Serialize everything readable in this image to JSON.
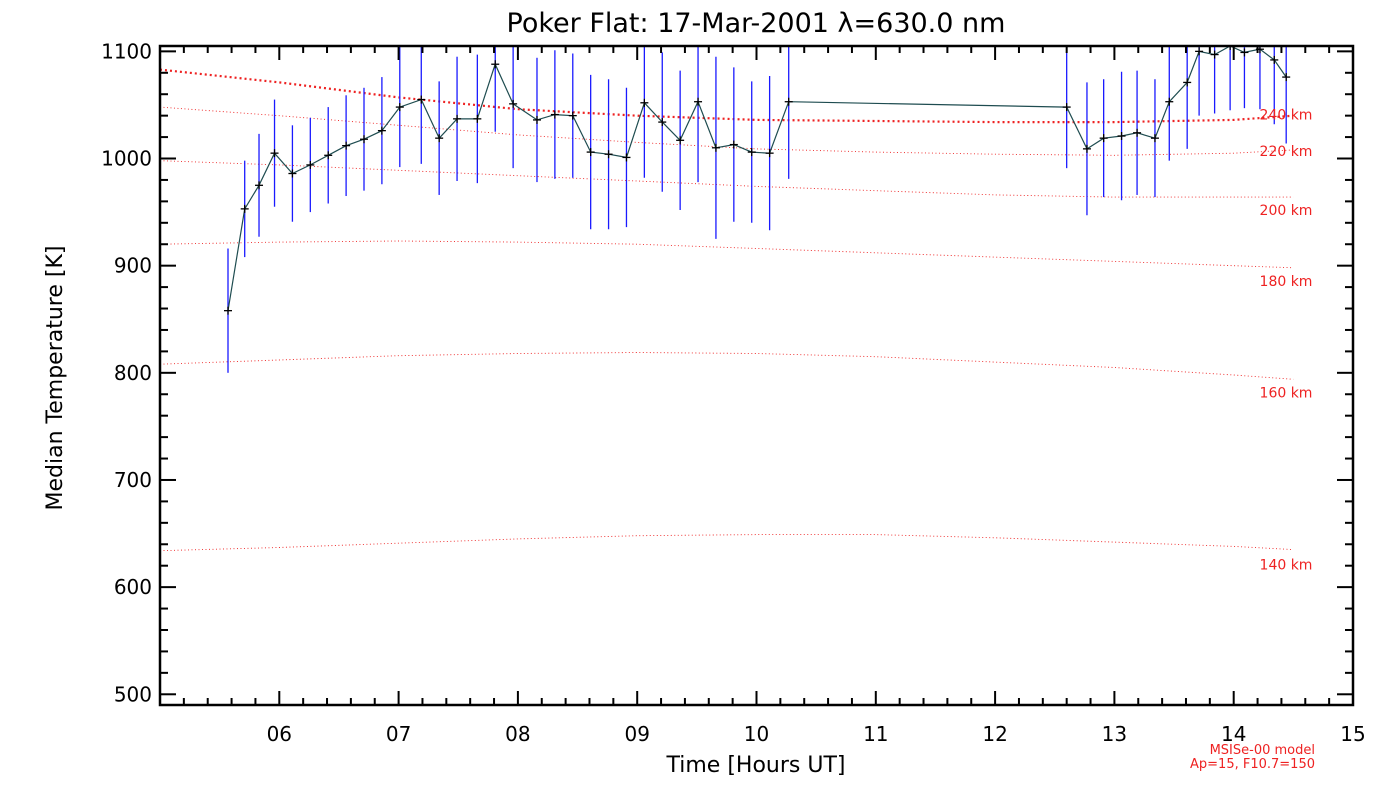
{
  "chart_data": {
    "type": "line",
    "title": "Poker Flat: 17-Mar-2001 λ=630.0 nm",
    "xlabel": "Time [Hours UT]",
    "ylabel": "Median Temperature [K]",
    "xlim": [
      5.0,
      15.0
    ],
    "ylim": [
      490,
      1105
    ],
    "xticks": [
      6,
      7,
      8,
      9,
      10,
      11,
      12,
      13,
      14,
      15
    ],
    "xtick_labels": [
      "06",
      "07",
      "08",
      "09",
      "10",
      "11",
      "12",
      "13",
      "14",
      "15"
    ],
    "yticks": [
      500,
      600,
      700,
      800,
      900,
      1000,
      1100
    ],
    "ytick_labels": [
      "500",
      "600",
      "700",
      "800",
      "900",
      "1000",
      "1100"
    ],
    "grid": false,
    "colors": {
      "measurement": "#000000",
      "connector": "#1e4c50",
      "error_bar": "#1a1aff",
      "model": "#ee2222"
    },
    "series": [
      {
        "x": [
          5.57,
          5.71,
          5.83,
          5.96,
          6.11,
          6.26,
          6.41,
          6.56,
          6.71,
          6.86,
          7.01,
          7.19,
          7.34,
          7.49,
          7.66,
          7.81,
          7.96,
          8.16,
          8.31,
          8.46,
          8.61,
          8.76,
          8.91,
          9.06,
          9.21,
          9.36,
          9.51,
          9.66,
          9.81,
          9.96,
          10.11,
          10.27,
          12.6,
          12.77,
          12.91,
          13.06,
          13.19,
          13.34,
          13.46,
          13.61,
          13.71,
          13.84,
          13.97,
          14.09,
          14.22,
          14.34,
          14.44
        ],
        "y": [
          858,
          953,
          975,
          1005,
          986,
          994,
          1003,
          1012,
          1018,
          1026,
          1048,
          1055,
          1019,
          1037,
          1037,
          1088,
          1051,
          1036,
          1041,
          1040,
          1006,
          1004,
          1001,
          1052,
          1034,
          1017,
          1053,
          1010,
          1013,
          1006,
          1005,
          1053,
          1048,
          1009,
          1019,
          1021,
          1024,
          1019,
          1053,
          1071,
          1100,
          1097,
          1105,
          1099,
          1102,
          1092,
          1076
        ],
        "err": [
          58,
          45,
          48,
          50,
          45,
          44,
          45,
          47,
          48,
          50,
          56,
          60,
          53,
          58,
          60,
          63,
          60,
          58,
          60,
          58,
          72,
          70,
          65,
          70,
          65,
          65,
          75,
          85,
          72,
          66,
          72,
          72,
          57,
          62,
          55,
          60,
          58,
          55,
          55,
          62,
          60,
          55,
          60,
          52,
          56,
          60,
          62
        ]
      }
    ],
    "model_curves": [
      {
        "label": "140 km",
        "x": [
          5.0,
          6.0,
          7.0,
          8.0,
          9.0,
          10.0,
          11.0,
          12.0,
          13.0,
          14.0,
          14.5
        ],
        "y": [
          634,
          637,
          641,
          645,
          648,
          649,
          649,
          646,
          642,
          638,
          635
        ]
      },
      {
        "label": "160 km",
        "x": [
          5.0,
          6.0,
          7.0,
          8.0,
          9.0,
          10.0,
          11.0,
          12.0,
          13.0,
          14.0,
          14.5
        ],
        "y": [
          808,
          812,
          816,
          818,
          819,
          818,
          815,
          810,
          805,
          798,
          794
        ]
      },
      {
        "label": "180 km",
        "x": [
          5.0,
          6.0,
          7.0,
          8.0,
          9.0,
          10.0,
          11.0,
          12.0,
          13.0,
          14.0,
          14.5
        ],
        "y": [
          920,
          922,
          923,
          922,
          920,
          916,
          912,
          908,
          904,
          900,
          898
        ]
      },
      {
        "label": "200 km",
        "x": [
          5.0,
          6.0,
          7.0,
          8.0,
          9.0,
          10.0,
          11.0,
          12.0,
          13.0,
          14.0,
          14.5
        ],
        "y": [
          998,
          994,
          989,
          984,
          979,
          974,
          970,
          966,
          964,
          964,
          964
        ]
      },
      {
        "label": "220 km",
        "x": [
          5.0,
          6.0,
          7.0,
          8.0,
          9.0,
          10.0,
          11.0,
          12.0,
          13.0,
          14.0,
          14.5
        ],
        "y": [
          1048,
          1040,
          1031,
          1022,
          1015,
          1009,
          1006,
          1004,
          1003,
          1005,
          1008
        ]
      },
      {
        "label": "240 km",
        "x": [
          5.0,
          6.0,
          7.0,
          8.0,
          9.0,
          10.0,
          11.0,
          12.0,
          13.0,
          14.0,
          14.5
        ],
        "y": [
          1083,
          1071,
          1057,
          1046,
          1040,
          1036,
          1035,
          1034,
          1034,
          1036,
          1040
        ]
      }
    ],
    "model_note": [
      "MSISe-00 model",
      "Ap=15, F10.7=150"
    ]
  }
}
